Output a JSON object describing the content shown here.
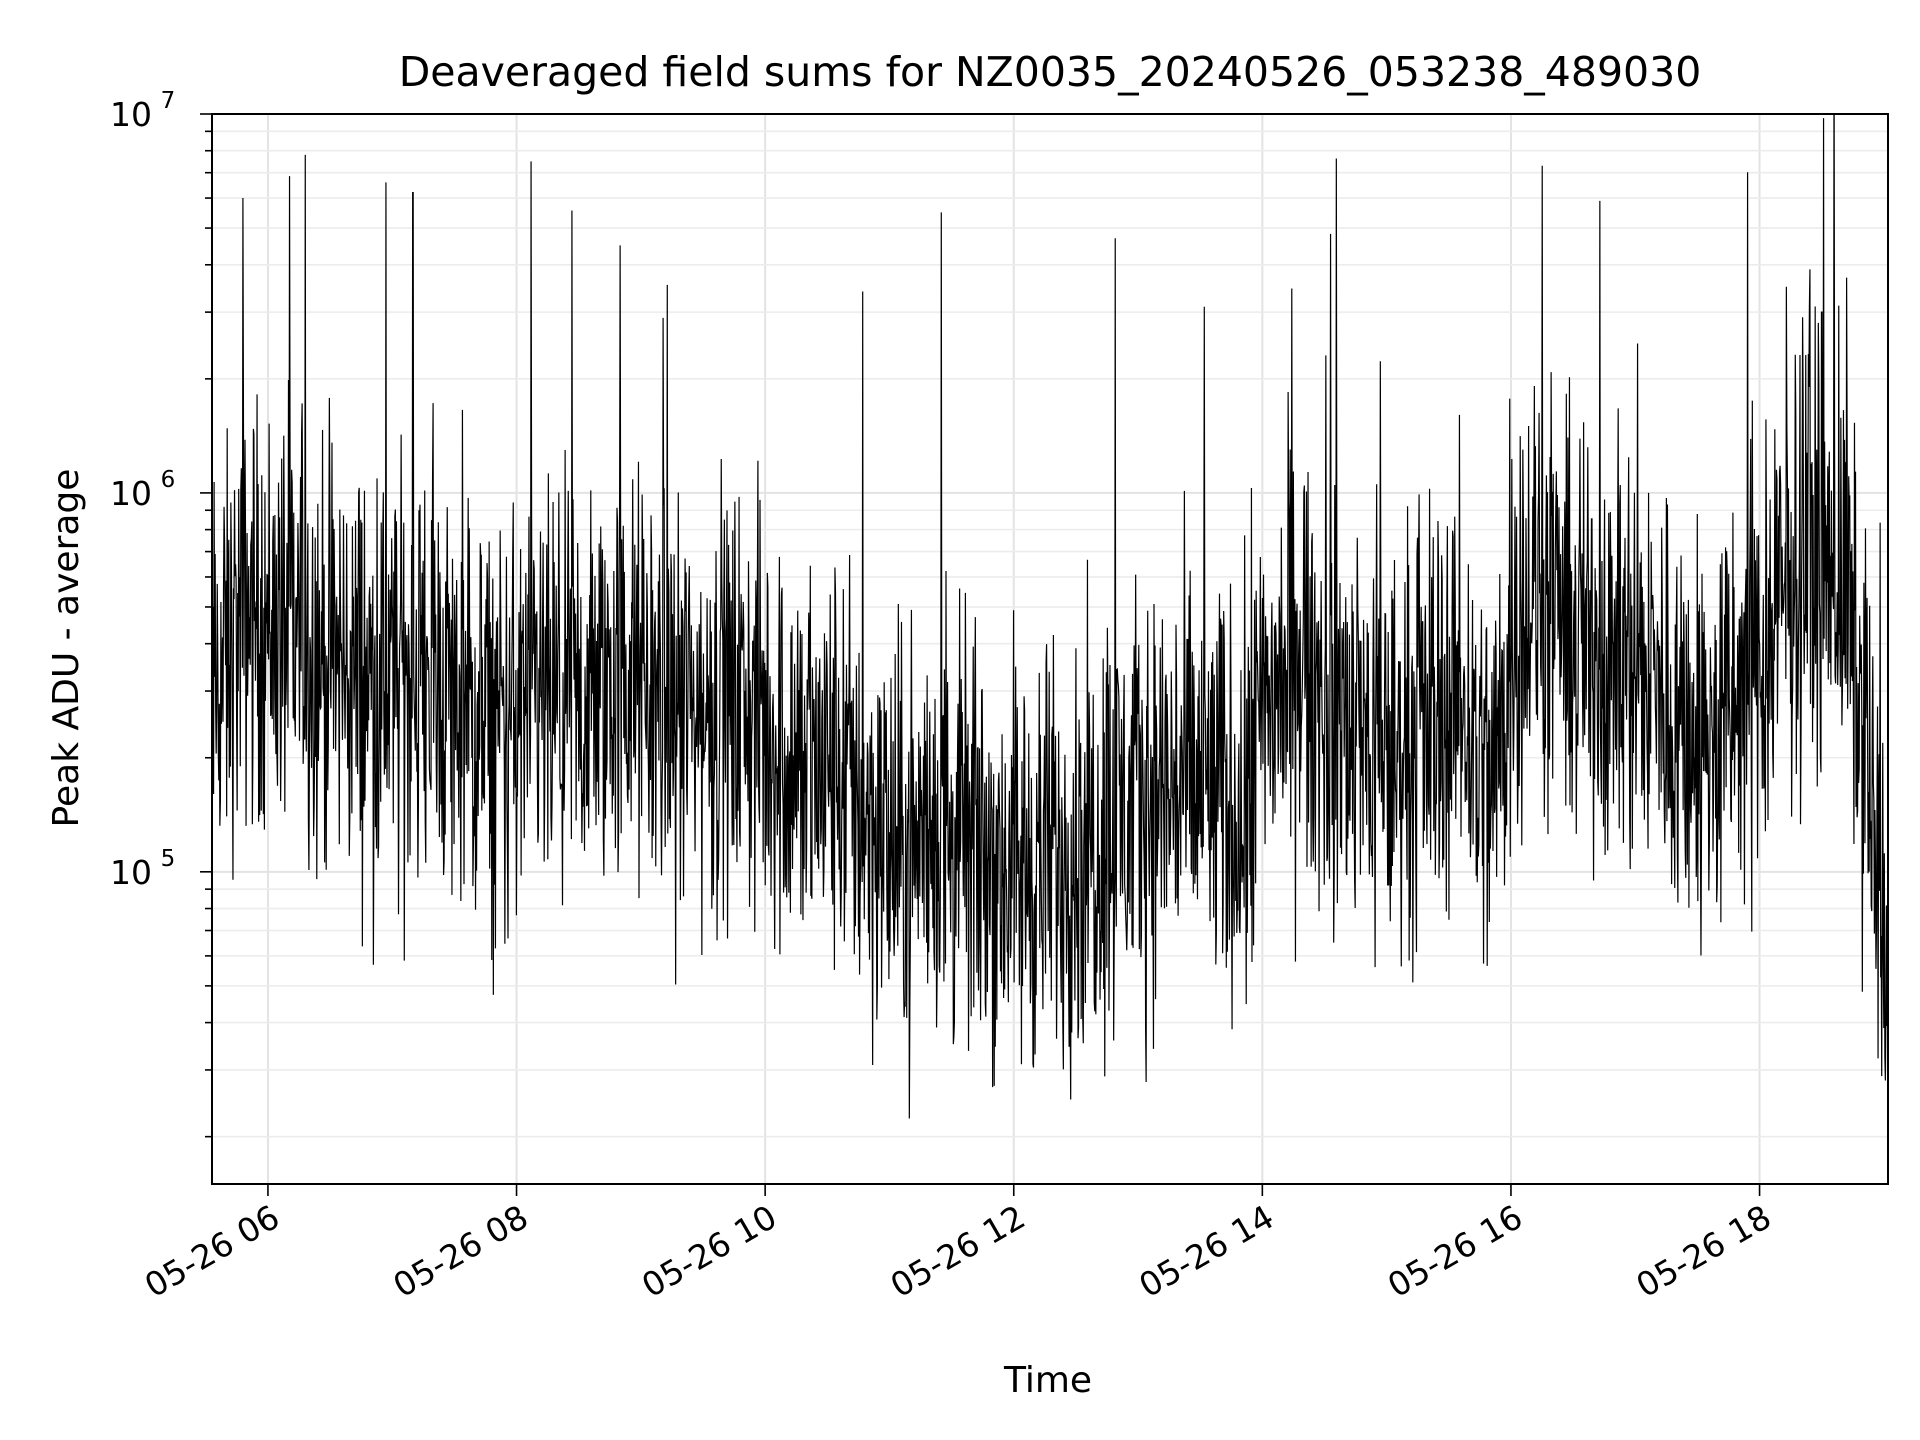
{
  "chart_data": {
    "type": "line",
    "title": "Deaveraged field sums for NZ0035_20240526_053238_489030",
    "xlabel": "Time",
    "ylabel": "Peak ADU - average",
    "x_range": [
      "2024-05-26 05:33",
      "2024-05-26 19:02"
    ],
    "y_scale": "log",
    "ylim": [
      15000,
      10000000
    ],
    "grid": true,
    "x_ticks": [
      {
        "label": "05-26 06",
        "hour": 6
      },
      {
        "label": "05-26 08",
        "hour": 8
      },
      {
        "label": "05-26 10",
        "hour": 10
      },
      {
        "label": "05-26 12",
        "hour": 12
      },
      {
        "label": "05-26 14",
        "hour": 14
      },
      {
        "label": "05-26 16",
        "hour": 16
      },
      {
        "label": "05-26 18",
        "hour": 18
      }
    ],
    "y_ticks": [
      {
        "base": "10",
        "exp": "5",
        "value": 100000
      },
      {
        "base": "10",
        "exp": "6",
        "value": 1000000
      },
      {
        "base": "10",
        "exp": "7",
        "value": 10000000
      }
    ],
    "series": [
      {
        "color": "#000000",
        "x": [
          "2024-05-26 05:35",
          "2024-05-26 05:50",
          "2024-05-26 06:05",
          "2024-05-26 06:20",
          "2024-05-26 06:35",
          "2024-05-26 06:50",
          "2024-05-26 07:05",
          "2024-05-26 07:20",
          "2024-05-26 07:35",
          "2024-05-26 07:50",
          "2024-05-26 08:05",
          "2024-05-26 08:20",
          "2024-05-26 08:35",
          "2024-05-26 08:50",
          "2024-05-26 09:05",
          "2024-05-26 09:20",
          "2024-05-26 09:35",
          "2024-05-26 09:50",
          "2024-05-26 10:05",
          "2024-05-26 10:20",
          "2024-05-26 10:35",
          "2024-05-26 10:50",
          "2024-05-26 11:05",
          "2024-05-26 11:20",
          "2024-05-26 11:35",
          "2024-05-26 11:50",
          "2024-05-26 12:05",
          "2024-05-26 12:20",
          "2024-05-26 12:35",
          "2024-05-26 12:50",
          "2024-05-26 13:05",
          "2024-05-26 13:20",
          "2024-05-26 13:35",
          "2024-05-26 13:50",
          "2024-05-26 14:05",
          "2024-05-26 14:20",
          "2024-05-26 14:35",
          "2024-05-26 14:50",
          "2024-05-26 15:05",
          "2024-05-26 15:20",
          "2024-05-26 15:35",
          "2024-05-26 15:50",
          "2024-05-26 16:05",
          "2024-05-26 16:20",
          "2024-05-26 16:35",
          "2024-05-26 16:50",
          "2024-05-26 17:05",
          "2024-05-26 17:20",
          "2024-05-26 17:35",
          "2024-05-26 17:50",
          "2024-05-26 18:05",
          "2024-05-26 18:20",
          "2024-05-26 18:35",
          "2024-05-26 18:50",
          "2024-05-26 19:00"
        ],
        "y": [
          300000,
          500000,
          450000,
          400000,
          350000,
          320000,
          300000,
          350000,
          250000,
          230000,
          270000,
          260000,
          280000,
          330000,
          300000,
          270000,
          260000,
          280000,
          220000,
          180000,
          190000,
          140000,
          110000,
          130000,
          120000,
          110000,
          100000,
          110000,
          120000,
          140000,
          160000,
          170000,
          160000,
          150000,
          300000,
          330000,
          270000,
          220000,
          200000,
          260000,
          300000,
          160000,
          550000,
          450000,
          400000,
          380000,
          330000,
          260000,
          210000,
          280000,
          400000,
          700000,
          750000,
          280000,
          60000
        ]
      }
    ],
    "spikes": [
      {
        "x": "2024-05-26 05:48",
        "y": 6000000
      },
      {
        "x": "2024-05-26 06:18",
        "y": 7800000
      },
      {
        "x": "2024-05-26 06:57",
        "y": 6600000
      },
      {
        "x": "2024-05-26 07:10",
        "y": 6200000
      },
      {
        "x": "2024-05-26 08:07",
        "y": 7500000
      },
      {
        "x": "2024-05-26 08:50",
        "y": 4500000
      },
      {
        "x": "2024-05-26 10:47",
        "y": 3400000
      },
      {
        "x": "2024-05-26 11:25",
        "y": 5500000
      },
      {
        "x": "2024-05-26 12:49",
        "y": 4700000
      },
      {
        "x": "2024-05-26 13:32",
        "y": 3100000
      },
      {
        "x": "2024-05-26 16:15",
        "y": 7300000
      },
      {
        "x": "2024-05-26 16:43",
        "y": 5900000
      },
      {
        "x": "2024-05-26 18:13",
        "y": 3500000
      },
      {
        "x": "2024-05-26 18:30",
        "y": 3000000
      },
      {
        "x": "2024-05-26 18:42",
        "y": 3700000
      }
    ]
  }
}
